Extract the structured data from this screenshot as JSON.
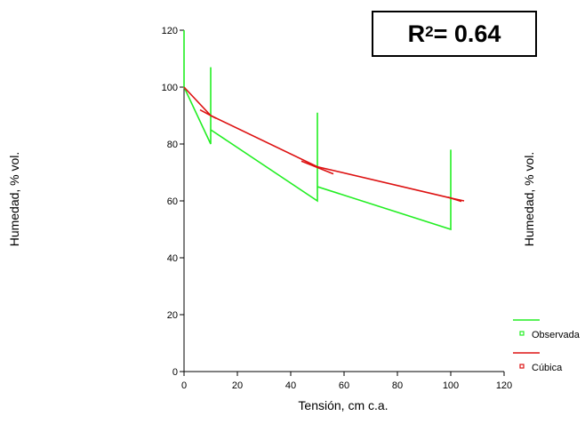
{
  "chart_data": {
    "type": "line",
    "xlabel": "Tensión, cm  c.a.",
    "ylabel_left": "Humedad, % vol.",
    "ylabel_right": "Humedad, % vol.",
    "xlim": [
      0,
      120
    ],
    "ylim": [
      0,
      120
    ],
    "xticks": [
      "0",
      "20",
      "40",
      "60",
      "80",
      "100",
      "120"
    ],
    "yticks": [
      "0",
      "20",
      "40",
      "60",
      "80",
      "100",
      "120"
    ],
    "grid": false,
    "legend_placement": "bottom-right",
    "annotation": {
      "prefix": "R",
      "sup": "2",
      "suffix": " = 0.64"
    },
    "series": [
      {
        "name": "Observada",
        "color": "#22ee22",
        "points": [
          [
            0,
            120
          ],
          [
            0,
            100
          ],
          [
            10,
            80
          ],
          [
            10,
            107
          ],
          [
            10,
            85
          ],
          [
            50,
            60
          ],
          [
            50,
            91
          ],
          [
            50,
            65
          ],
          [
            100,
            50
          ],
          [
            100,
            78
          ]
        ]
      },
      {
        "name": "Cúbica",
        "color": "#dd1111",
        "points": [
          [
            0,
            100
          ],
          [
            10,
            90
          ],
          [
            50,
            72
          ],
          [
            100,
            61
          ],
          [
            105,
            60
          ]
        ],
        "segments": [
          [
            [
              6,
              92
            ],
            [
              12,
              89
            ]
          ],
          [
            [
              44,
              74
            ],
            [
              56,
              69.5
            ]
          ],
          [
            [
              99,
              61.3
            ],
            [
              104,
              59.8
            ]
          ]
        ]
      }
    ]
  }
}
